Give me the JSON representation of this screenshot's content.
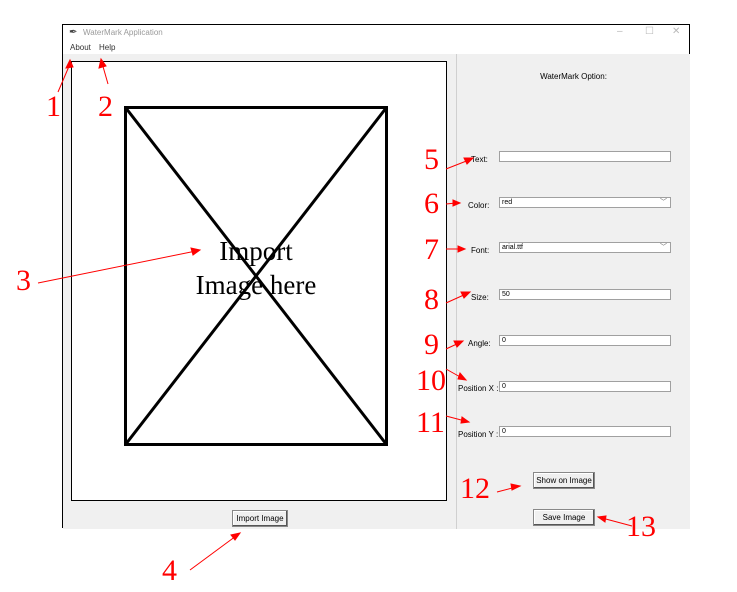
{
  "window": {
    "title": "WaterMark Application",
    "controls": {
      "minimize": "–",
      "maximize": "☐",
      "close": "✕"
    }
  },
  "menu": {
    "items": [
      "About",
      "Help"
    ]
  },
  "left": {
    "placeholder_line1": "Import",
    "placeholder_line2": "Image here",
    "import_button": "Import Image"
  },
  "options": {
    "title": "WaterMark Option:",
    "fields": [
      {
        "label": "Text:",
        "value": "",
        "type": "entry"
      },
      {
        "label": "Color:",
        "value": "red",
        "type": "combo"
      },
      {
        "label": "Font:",
        "value": "arial.ttf",
        "type": "combo"
      },
      {
        "label": "Size:",
        "value": "50",
        "type": "entry"
      },
      {
        "label": "Angle:",
        "value": "0",
        "type": "entry"
      },
      {
        "label": "Position X :",
        "value": "0",
        "type": "entry"
      },
      {
        "label": "Position Y :",
        "value": "0",
        "type": "entry"
      }
    ],
    "show_button": "Show on Image",
    "save_button": "Save Image"
  },
  "annotations": [
    "1",
    "2",
    "3",
    "4",
    "5",
    "6",
    "7",
    "8",
    "9",
    "10",
    "11",
    "12",
    "13"
  ],
  "colors": {
    "annotation": "#ff0000",
    "panel_bg": "#f0f0f0"
  }
}
